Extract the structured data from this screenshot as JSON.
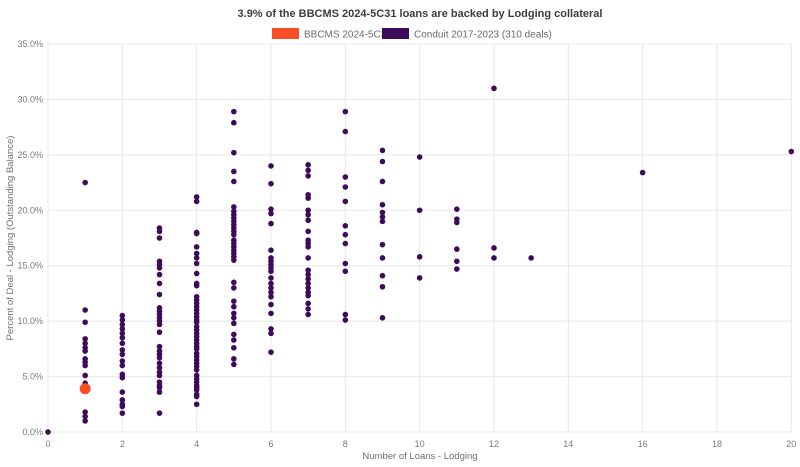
{
  "title": "3.9% of the BBCMS 2024-5C31 loans are backed by Lodging collateral",
  "legend": {
    "items": [
      {
        "label": "BBCMS 2024-5C31",
        "color": "#f94d26"
      },
      {
        "label": "Conduit 2017-2023 (310 deals)",
        "color": "#3d0b59"
      }
    ]
  },
  "colors": {
    "background": "#ffffff",
    "title_text": "#3d3d3d",
    "legend_text": "#6b6b6b",
    "grid": "#e8e8e8",
    "tick_label": "#7a7a7a",
    "axis_title": "#6f6f6f",
    "bbcms_orange": "#f94d26",
    "conduit_purple": "#3d0b59"
  },
  "chart_data": {
    "type": "scatter",
    "title": "3.9% of the BBCMS 2024-5C31 loans are backed by Lodging collateral",
    "xlabel": "Number of Loans - Lodging",
    "ylabel": "Percent of Deal - Lodging (Outstanding Balance)",
    "xlim": [
      0,
      20
    ],
    "ylim": [
      0,
      35
    ],
    "grid": true,
    "legend_position": "top-center",
    "x_ticks": [
      0,
      2,
      4,
      6,
      8,
      10,
      12,
      14,
      16,
      18,
      20
    ],
    "x_tick_labels": [
      "0",
      "2",
      "4",
      "6",
      "8",
      "10",
      "12",
      "14",
      "16",
      "18",
      "20"
    ],
    "y_ticks": [
      0,
      5,
      10,
      15,
      20,
      25,
      30,
      35
    ],
    "y_tick_labels": [
      "0.0%",
      "5.0%",
      "10.0%",
      "15.0%",
      "20.0%",
      "25.0%",
      "30.0%",
      "35.0%"
    ],
    "series": [
      {
        "name": "BBCMS 2024-5C31",
        "color": "#f94d26",
        "marker_radius": 5.5,
        "points": [
          [
            1,
            3.9
          ]
        ]
      },
      {
        "name": "Conduit 2017-2023 (310 deals)",
        "color": "#3d0b59",
        "marker_radius": 2.8,
        "points": [
          [
            0,
            0.0
          ],
          [
            1,
            22.5
          ],
          [
            1,
            11.0
          ],
          [
            1,
            9.9
          ],
          [
            1,
            8.4
          ],
          [
            1,
            8.0
          ],
          [
            1,
            7.6
          ],
          [
            1,
            7.3
          ],
          [
            1,
            6.6
          ],
          [
            1,
            6.3
          ],
          [
            1,
            6.0
          ],
          [
            1,
            5.1
          ],
          [
            1,
            4.4
          ],
          [
            1,
            1.8
          ],
          [
            1,
            1.4
          ],
          [
            1,
            1.0
          ],
          [
            2,
            10.5
          ],
          [
            2,
            10.1
          ],
          [
            2,
            9.7
          ],
          [
            2,
            9.3
          ],
          [
            2,
            8.9
          ],
          [
            2,
            8.5
          ],
          [
            2,
            8.0
          ],
          [
            2,
            7.4
          ],
          [
            2,
            7.0
          ],
          [
            2,
            6.4
          ],
          [
            2,
            6.0
          ],
          [
            2,
            5.2
          ],
          [
            2,
            4.9
          ],
          [
            2,
            3.6
          ],
          [
            2,
            2.9
          ],
          [
            2,
            2.5
          ],
          [
            2,
            2.3
          ],
          [
            2,
            1.7
          ],
          [
            3,
            18.4
          ],
          [
            3,
            18.1
          ],
          [
            3,
            17.5
          ],
          [
            3,
            15.4
          ],
          [
            3,
            15.1
          ],
          [
            3,
            14.8
          ],
          [
            3,
            14.2
          ],
          [
            3,
            13.4
          ],
          [
            3,
            12.4
          ],
          [
            3,
            11.2
          ],
          [
            3,
            10.9
          ],
          [
            3,
            10.6
          ],
          [
            3,
            10.3
          ],
          [
            3,
            10.0
          ],
          [
            3,
            9.7
          ],
          [
            3,
            9.0
          ],
          [
            3,
            7.7
          ],
          [
            3,
            7.3
          ],
          [
            3,
            7.0
          ],
          [
            3,
            6.7
          ],
          [
            3,
            6.2
          ],
          [
            3,
            5.8
          ],
          [
            3,
            5.4
          ],
          [
            3,
            5.1
          ],
          [
            3,
            4.5
          ],
          [
            3,
            4.2
          ],
          [
            3,
            4.0
          ],
          [
            3,
            3.6
          ],
          [
            3,
            1.7
          ],
          [
            4,
            21.2
          ],
          [
            4,
            20.8
          ],
          [
            4,
            18.0
          ],
          [
            4,
            17.9
          ],
          [
            4,
            16.7
          ],
          [
            4,
            16.1
          ],
          [
            4,
            15.7
          ],
          [
            4,
            15.2
          ],
          [
            4,
            14.3
          ],
          [
            4,
            13.4
          ],
          [
            4,
            13.2
          ],
          [
            4,
            12.2
          ],
          [
            4,
            11.9
          ],
          [
            4,
            11.6
          ],
          [
            4,
            11.3
          ],
          [
            4,
            11.0
          ],
          [
            4,
            10.7
          ],
          [
            4,
            10.4
          ],
          [
            4,
            10.1
          ],
          [
            4,
            9.9
          ],
          [
            4,
            9.5
          ],
          [
            4,
            9.2
          ],
          [
            4,
            8.9
          ],
          [
            4,
            8.6
          ],
          [
            4,
            8.3
          ],
          [
            4,
            8.0
          ],
          [
            4,
            7.7
          ],
          [
            4,
            7.5
          ],
          [
            4,
            7.1
          ],
          [
            4,
            6.8
          ],
          [
            4,
            6.5
          ],
          [
            4,
            6.2
          ],
          [
            4,
            5.9
          ],
          [
            4,
            5.6
          ],
          [
            4,
            5.1
          ],
          [
            4,
            4.8
          ],
          [
            4,
            4.5
          ],
          [
            4,
            4.2
          ],
          [
            4,
            4.0
          ],
          [
            4,
            3.8
          ],
          [
            4,
            3.4
          ],
          [
            4,
            3.2
          ],
          [
            4,
            2.5
          ],
          [
            5,
            28.9
          ],
          [
            5,
            27.9
          ],
          [
            5,
            25.2
          ],
          [
            5,
            23.5
          ],
          [
            5,
            22.6
          ],
          [
            5,
            20.3
          ],
          [
            5,
            19.9
          ],
          [
            5,
            19.6
          ],
          [
            5,
            19.3
          ],
          [
            5,
            19.0
          ],
          [
            5,
            18.7
          ],
          [
            5,
            18.4
          ],
          [
            5,
            18.1
          ],
          [
            5,
            17.8
          ],
          [
            5,
            17.3
          ],
          [
            5,
            17.0
          ],
          [
            5,
            16.7
          ],
          [
            5,
            16.4
          ],
          [
            5,
            16.1
          ],
          [
            5,
            15.8
          ],
          [
            5,
            15.5
          ],
          [
            5,
            13.5
          ],
          [
            5,
            13.0
          ],
          [
            5,
            11.8
          ],
          [
            5,
            11.3
          ],
          [
            5,
            10.7
          ],
          [
            5,
            10.3
          ],
          [
            5,
            9.8
          ],
          [
            5,
            8.8
          ],
          [
            5,
            8.3
          ],
          [
            5,
            7.6
          ],
          [
            5,
            6.6
          ],
          [
            5,
            6.1
          ],
          [
            6,
            24.0
          ],
          [
            6,
            22.4
          ],
          [
            6,
            20.1
          ],
          [
            6,
            19.7
          ],
          [
            6,
            18.8
          ],
          [
            6,
            16.4
          ],
          [
            6,
            15.7
          ],
          [
            6,
            15.4
          ],
          [
            6,
            15.1
          ],
          [
            6,
            14.8
          ],
          [
            6,
            14.5
          ],
          [
            6,
            13.9
          ],
          [
            6,
            13.4
          ],
          [
            6,
            13.0
          ],
          [
            6,
            12.6
          ],
          [
            6,
            12.2
          ],
          [
            6,
            11.5
          ],
          [
            6,
            10.7
          ],
          [
            6,
            9.3
          ],
          [
            6,
            8.9
          ],
          [
            6,
            7.2
          ],
          [
            7,
            24.1
          ],
          [
            7,
            23.6
          ],
          [
            7,
            23.1
          ],
          [
            7,
            21.4
          ],
          [
            7,
            21.1
          ],
          [
            7,
            20.0
          ],
          [
            7,
            19.6
          ],
          [
            7,
            19.1
          ],
          [
            7,
            18.1
          ],
          [
            7,
            17.3
          ],
          [
            7,
            17.0
          ],
          [
            7,
            16.7
          ],
          [
            7,
            15.7
          ],
          [
            7,
            14.6
          ],
          [
            7,
            14.2
          ],
          [
            7,
            13.8
          ],
          [
            7,
            13.4
          ],
          [
            7,
            13.0
          ],
          [
            7,
            12.6
          ],
          [
            7,
            12.3
          ],
          [
            7,
            11.6
          ],
          [
            7,
            11.1
          ],
          [
            7,
            10.6
          ],
          [
            8,
            28.9
          ],
          [
            8,
            27.1
          ],
          [
            8,
            23.0
          ],
          [
            8,
            22.1
          ],
          [
            8,
            20.8
          ],
          [
            8,
            18.6
          ],
          [
            8,
            17.8
          ],
          [
            8,
            17.0
          ],
          [
            8,
            15.2
          ],
          [
            8,
            14.5
          ],
          [
            8,
            10.6
          ],
          [
            8,
            10.1
          ],
          [
            9,
            25.4
          ],
          [
            9,
            24.4
          ],
          [
            9,
            22.6
          ],
          [
            9,
            20.5
          ],
          [
            9,
            19.8
          ],
          [
            9,
            19.4
          ],
          [
            9,
            19.0
          ],
          [
            9,
            16.9
          ],
          [
            9,
            15.7
          ],
          [
            9,
            14.1
          ],
          [
            9,
            13.1
          ],
          [
            9,
            10.3
          ],
          [
            10,
            24.8
          ],
          [
            10,
            20.0
          ],
          [
            10,
            15.8
          ],
          [
            10,
            13.9
          ],
          [
            11,
            20.1
          ],
          [
            11,
            19.2
          ],
          [
            11,
            18.9
          ],
          [
            11,
            16.5
          ],
          [
            11,
            15.4
          ],
          [
            11,
            14.7
          ],
          [
            12,
            31.0
          ],
          [
            12,
            16.6
          ],
          [
            12,
            15.7
          ],
          [
            13,
            15.7
          ],
          [
            16,
            23.4
          ],
          [
            20,
            25.3
          ]
        ]
      }
    ]
  }
}
